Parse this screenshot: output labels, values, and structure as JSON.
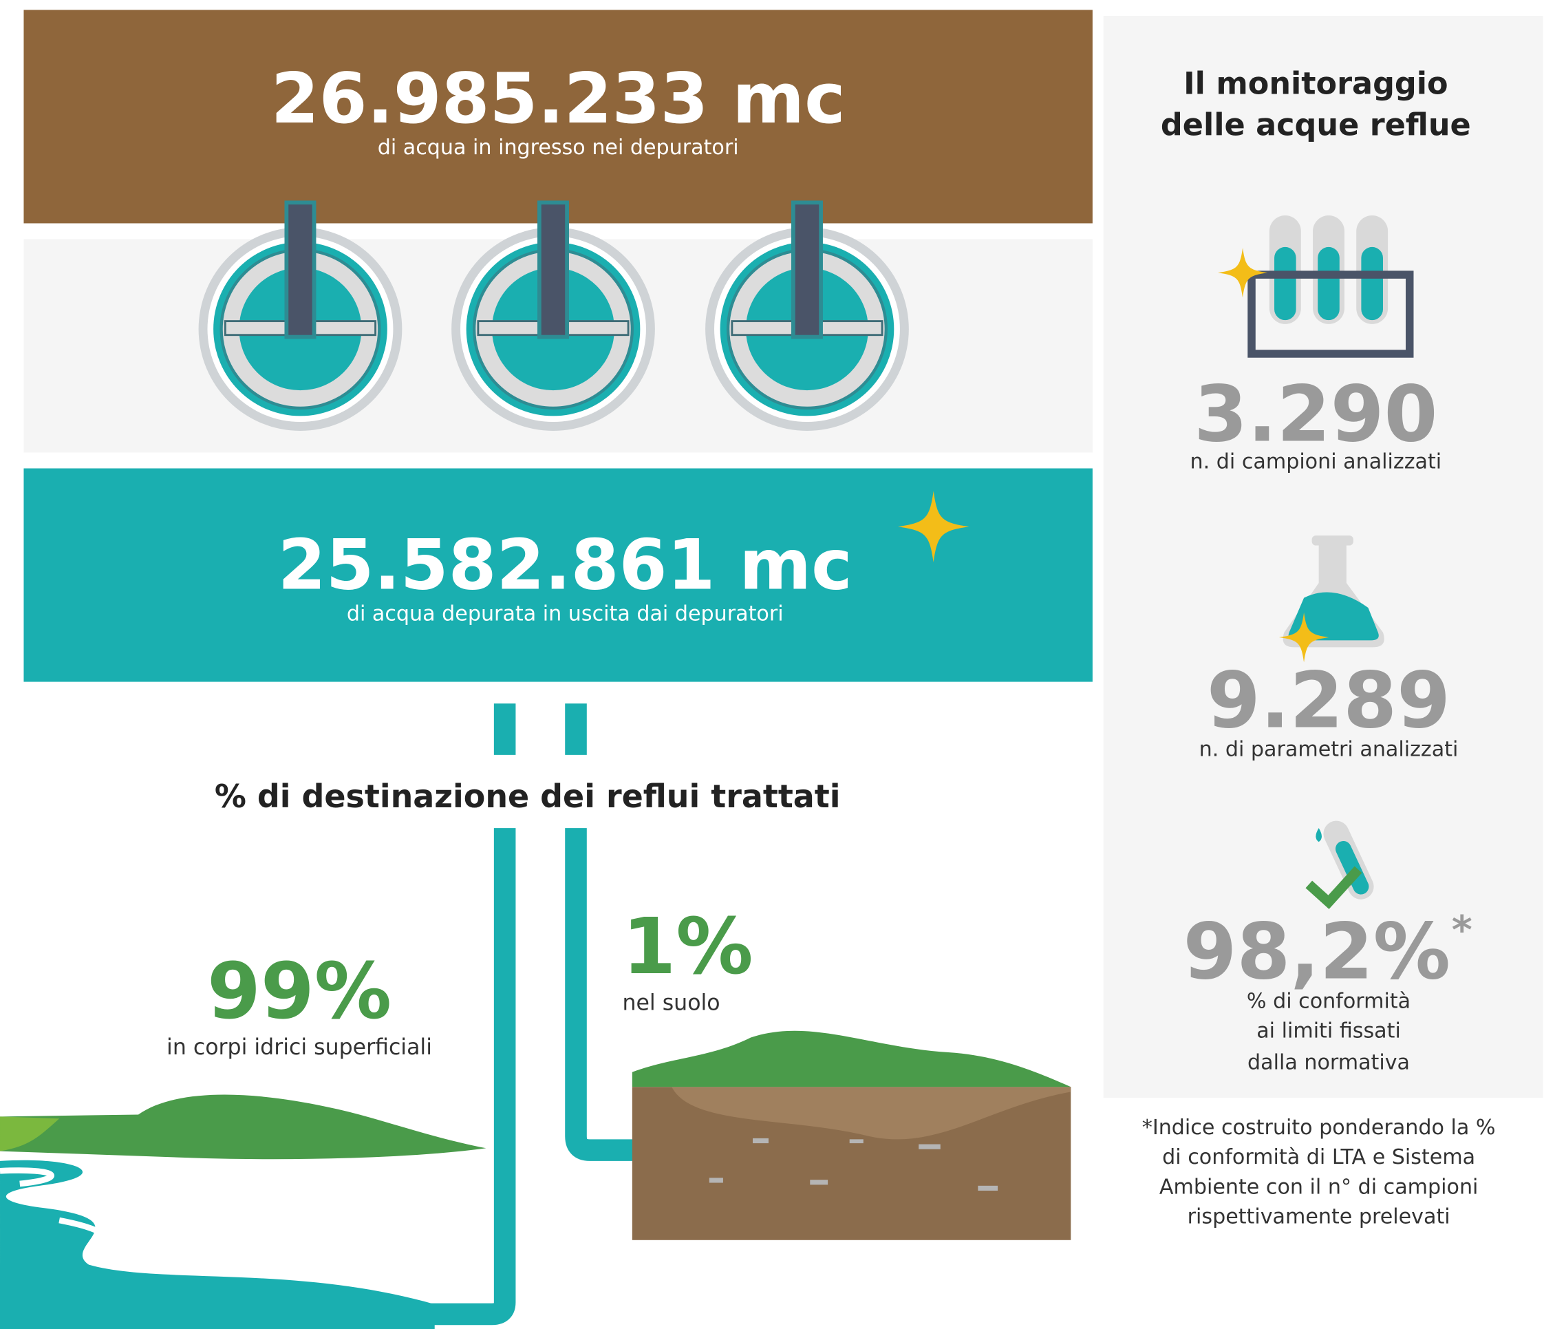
{
  "inflow": {
    "value": "26.985.233 mc",
    "label": "di acqua in ingresso nei depuratori"
  },
  "outflow": {
    "value": "25.582.861 mc",
    "label": "di acqua depurata in uscita dai depuratori"
  },
  "destination": {
    "title": "% di destinazione dei reflui trattati",
    "surface": {
      "value": "99%",
      "label": "in corpi idrici superficiali"
    },
    "soil": {
      "value": "1%",
      "label": "nel suolo"
    }
  },
  "monitoring": {
    "title_lines": [
      "Il monitoraggio",
      "delle acque reflue"
    ],
    "stats": [
      {
        "value": "3.290",
        "label_lines": [
          "n. di campioni analizzati"
        ]
      },
      {
        "value": "9.289",
        "label_lines": [
          "n. di parametri analizzati"
        ]
      },
      {
        "value": "98,2%",
        "note_mark": "*",
        "label_lines": [
          "% di conformità",
          "ai limiti fissati",
          "dalla normativa"
        ]
      }
    ]
  },
  "footnote": [
    "*Indice costruito ponderando la %",
    "di conformità di LTA e Sistema",
    "Ambiente con il n° di campioni",
    "rispettivamente prelevati"
  ]
}
